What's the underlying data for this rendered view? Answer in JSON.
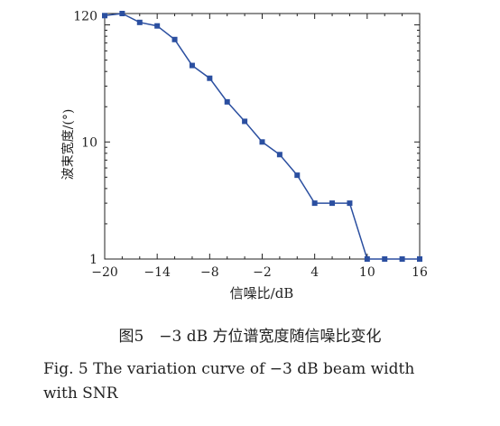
{
  "chart_data": {
    "type": "line",
    "xlabel": "信噪比/dB",
    "ylabel": "波束宽度/(°)",
    "xlim": [
      -20,
      16
    ],
    "ylim": [
      1,
      120
    ],
    "yscale": "log",
    "xticks": [
      "−20",
      "−14",
      "−8",
      "−2",
      "4",
      "10",
      "16"
    ],
    "xtick_values": [
      -20,
      -14,
      -8,
      -2,
      4,
      10,
      16
    ],
    "yticks": [
      "1",
      "10",
      "120"
    ],
    "ytick_values": [
      1,
      10,
      120
    ],
    "grid": false,
    "series": [
      {
        "color": "#2b4fa0",
        "marker": "square",
        "x": [
          -20,
          -18,
          -16,
          -14,
          -12,
          -10,
          -8,
          -6,
          -4,
          -2,
          0,
          2,
          4,
          6,
          8,
          10,
          12,
          14,
          16
        ],
        "y": [
          120,
          125,
          105,
          98,
          75,
          45,
          35,
          22,
          15,
          10,
          7.8,
          5.2,
          3.0,
          3.0,
          3.0,
          1.0,
          1.0,
          1.0,
          1.0
        ]
      }
    ]
  },
  "caption": {
    "cn": "图5　−3 dB 方位谱宽度随信噪比变化",
    "en_line1": "Fig. 5  The variation curve of −3 dB beam width",
    "en_line2": "with SNR"
  }
}
